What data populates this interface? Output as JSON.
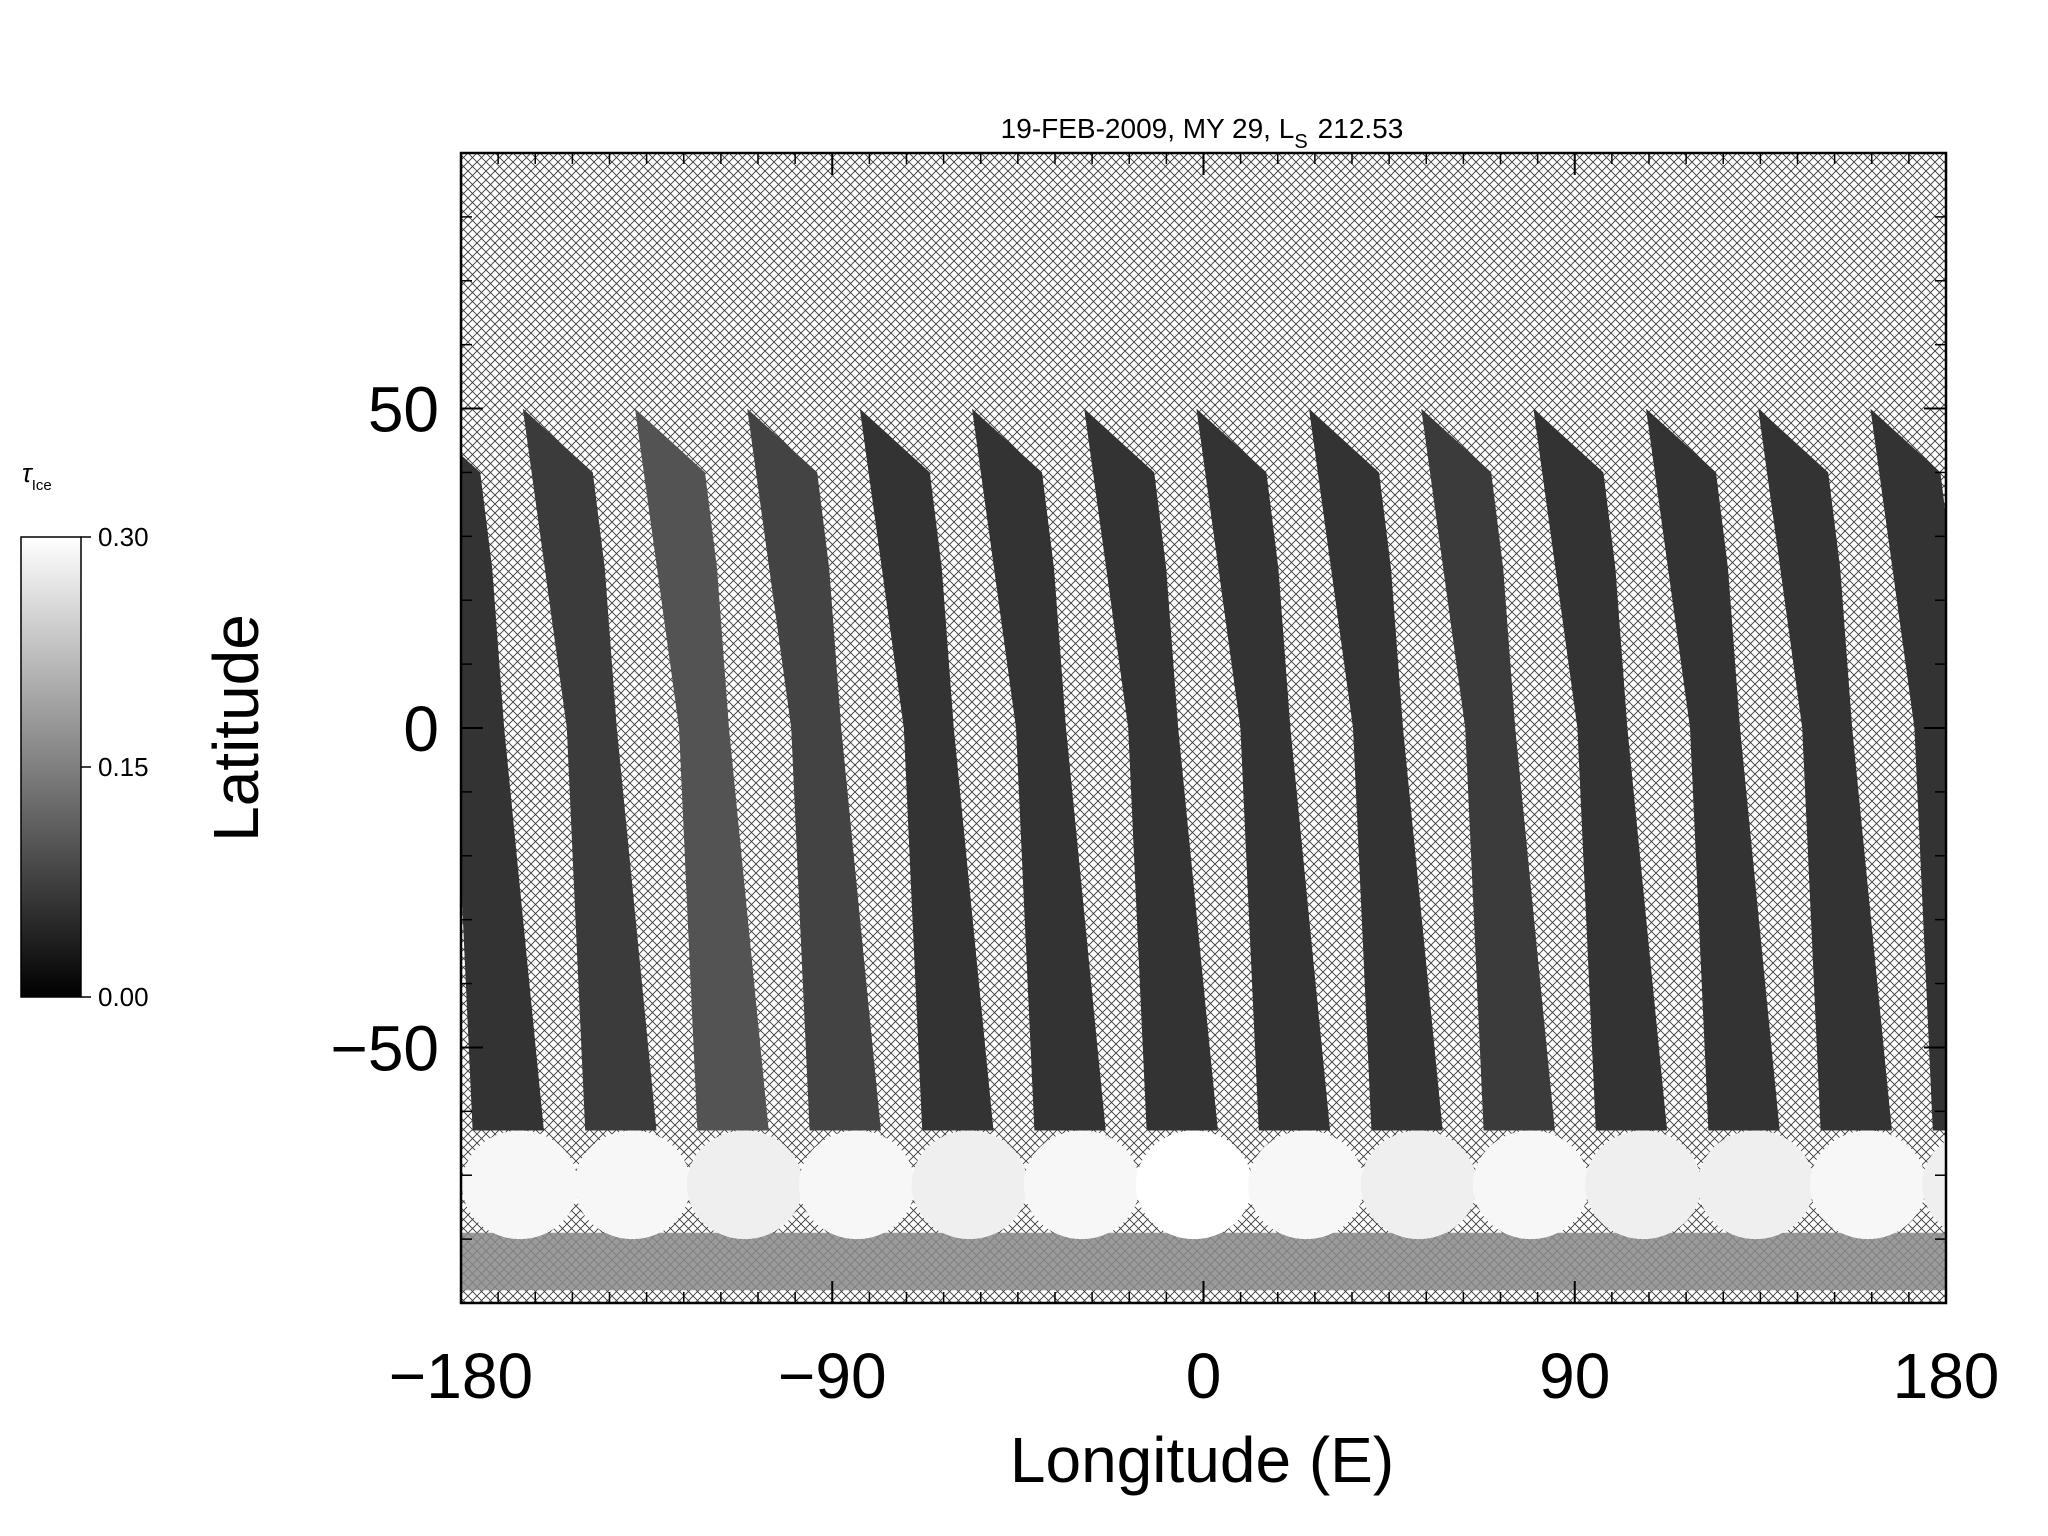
{
  "chart_data": {
    "type": "swath_map",
    "title": "19-FEB-2009, MY 29,  L",
    "title_subscript": "S",
    "title_suffix": "212.53",
    "xlabel": "Longitude (E)",
    "ylabel": "Latitude",
    "xlim": [
      -180,
      180
    ],
    "ylim": [
      -90,
      90
    ],
    "xticks": [
      -180,
      -90,
      0,
      90,
      180
    ],
    "yticks": [
      -50,
      0,
      50
    ],
    "x": [
      -175.6,
      -148.3,
      -121.1,
      -93.9,
      -66.6,
      -39.4,
      -12.2,
      15.0,
      42.3,
      69.5,
      96.7,
      124.0,
      151.2,
      178.4
    ],
    "values": [
      0.04,
      0.05,
      0.08,
      0.06,
      0.04,
      0.04,
      0.04,
      0.04,
      0.04,
      0.05,
      0.04,
      0.04,
      0.04,
      0.04
    ],
    "cap_values": [
      0.29,
      0.29,
      0.28,
      0.29,
      0.28,
      0.29,
      0.3,
      0.29,
      0.28,
      0.29,
      0.28,
      0.28,
      0.29,
      0.28
    ],
    "colorbar_label": "τ",
    "colorbar_label_subscript": "Ice",
    "clim": [
      0,
      0.3
    ],
    "colorbar_ticks": [
      {
        "value": 0,
        "label": "0.00"
      },
      {
        "value": 0.15,
        "label": "0.15"
      },
      {
        "value": 0.3,
        "label": "0.30"
      }
    ]
  }
}
